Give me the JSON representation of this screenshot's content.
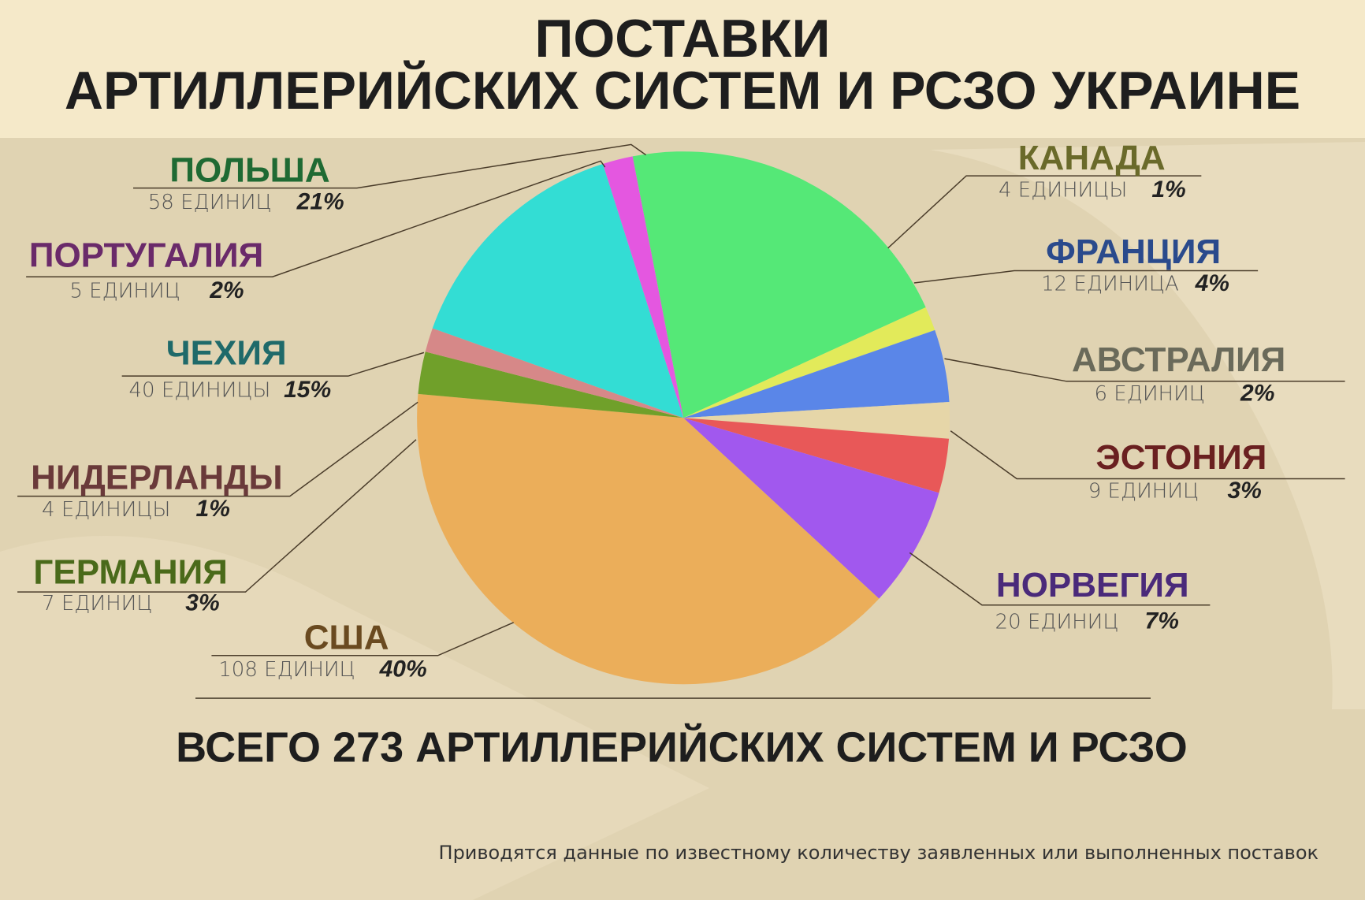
{
  "chart_data": {
    "type": "pie",
    "title": [
      "ПОСТАВКИ",
      "АРТИЛЛЕРИЙСКИХ СИСТЕМ И РСЗО УКРАИНЕ"
    ],
    "categories": [
      "ПОЛЬША",
      "КАНАДА",
      "ФРАНЦИЯ",
      "АВСТРАЛИЯ",
      "ЭСТОНИЯ",
      "НОРВЕГИЯ",
      "США",
      "ГЕРМАНИЯ",
      "НИДЕРЛАНДЫ",
      "ЧЕХИЯ",
      "ПОРТУГАЛИЯ"
    ],
    "values": [
      58,
      4,
      12,
      6,
      9,
      20,
      108,
      7,
      4,
      40,
      5
    ],
    "value_labels": [
      "58 ЕДИНИЦ",
      "4 ЕДИНИЦЫ",
      "12 ЕДИНИЦА",
      "6 ЕДИНИЦ",
      "9 ЕДИНИЦ",
      "20 ЕДИНИЦ",
      "108 ЕДИНИЦ",
      "7 ЕДИНИЦ",
      "4 ЕДИНИЦЫ",
      "40 ЕДИНИЦЫ",
      "5 ЕДИНИЦ"
    ],
    "shares": [
      21,
      1,
      4,
      2,
      3,
      7,
      40,
      3,
      1,
      15,
      2
    ],
    "share_labels": [
      "21%",
      "1%",
      "4%",
      "2%",
      "3%",
      "7%",
      "40%",
      "3%",
      "1%",
      "15%",
      "2%"
    ],
    "colors": [
      "#55e877",
      "#e2ea5a",
      "#5a86e8",
      "#e6d6a8",
      "#e85858",
      "#a158ee",
      "#ebae5a",
      "#70a02a",
      "#d68888",
      "#33ddd4",
      "#e457e0"
    ],
    "total": "ВСЕГО 273 АРТИЛЛЕРИЙСКИХ СИСТЕМ И РСЗО",
    "note": "Приводятся данные по известному количеству заявленных или выполненных поставок"
  }
}
